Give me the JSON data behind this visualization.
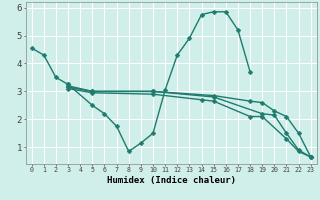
{
  "background_color": "#d0eeea",
  "grid_color": "#ffffff",
  "line_color": "#1e7b6e",
  "marker": "D",
  "markersize": 2.5,
  "linewidth": 1.0,
  "xlabel": "Humidex (Indice chaleur)",
  "xlim": [
    -0.5,
    23.5
  ],
  "ylim": [
    0.4,
    6.2
  ],
  "xticks": [
    0,
    1,
    2,
    3,
    4,
    5,
    6,
    7,
    8,
    9,
    10,
    11,
    12,
    13,
    14,
    15,
    16,
    17,
    18,
    19,
    20,
    21,
    22,
    23
  ],
  "yticks": [
    1,
    2,
    3,
    4,
    5,
    6
  ],
  "lines": [
    {
      "x": [
        0,
        1,
        2,
        3
      ],
      "y": [
        4.55,
        4.3,
        3.5,
        3.25
      ]
    },
    {
      "x": [
        3,
        5,
        6,
        7,
        8,
        9,
        10,
        11,
        12,
        13,
        14,
        15,
        16,
        17,
        18
      ],
      "y": [
        3.25,
        2.5,
        2.2,
        1.75,
        0.85,
        1.15,
        1.5,
        3.05,
        4.3,
        4.9,
        5.75,
        5.85,
        5.85,
        5.2,
        3.7
      ]
    },
    {
      "x": [
        3,
        5,
        10,
        15,
        18,
        19,
        20,
        21,
        22,
        23
      ],
      "y": [
        3.2,
        3.0,
        3.0,
        2.85,
        2.65,
        2.6,
        2.3,
        2.1,
        1.5,
        0.65
      ]
    },
    {
      "x": [
        3,
        5,
        10,
        15,
        19,
        20,
        21,
        22,
        23
      ],
      "y": [
        3.15,
        3.0,
        3.0,
        2.8,
        2.2,
        2.15,
        1.5,
        0.9,
        0.65
      ]
    },
    {
      "x": [
        3,
        5,
        10,
        14,
        15,
        18,
        19,
        21,
        22,
        23
      ],
      "y": [
        3.1,
        2.95,
        2.9,
        2.7,
        2.65,
        2.1,
        2.1,
        1.3,
        0.85,
        0.65
      ]
    }
  ]
}
